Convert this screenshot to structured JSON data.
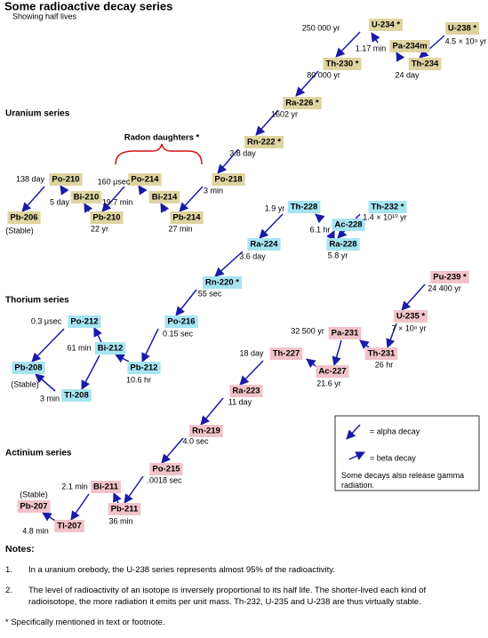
{
  "header": {
    "title": "Some radioactive decay series",
    "subtitle": "Showing half lives"
  },
  "series": [
    {
      "label": "Uranium series",
      "nodes": [
        "U-238 *",
        "Pa-234m",
        "Th-234",
        "U-234 *",
        "Th-230 *",
        "Ra-226 *",
        "Rn-222 *",
        "Po-218",
        "Pb-214",
        "Bi-214",
        "Po-214",
        "Pb-210",
        "Bi-210",
        "Po-210",
        "Pb-206"
      ],
      "labels": [
        "4.5 × 10⁹ yr",
        "24 day",
        "1.17 min",
        "250 000 yr",
        "80 000 yr",
        "1602 yr",
        "3.8 day",
        "3 min",
        "27 min",
        "19.7 min",
        "160 μsec",
        "22 yr",
        "5 day",
        "138 day",
        "(Stable)",
        "Radon daughters *"
      ]
    },
    {
      "label": "Thorium series",
      "nodes": [
        "Th-232 *",
        "Ac-228",
        "Ra-228",
        "Th-228",
        "Ra-224",
        "Rn-220 *",
        "Po-216",
        "Pb-212",
        "Bi-212",
        "Po-212",
        "Tl-208",
        "Pb-208"
      ],
      "labels": [
        "1.4 × 10¹⁰ yr",
        "6.1 hr",
        "5.8 yr",
        "1.9 yr",
        "3.6 day",
        "55 sec",
        "0.15 sec",
        "10.6 hr",
        "61 min",
        "0.3 μsec",
        "3 min",
        "(Stable)"
      ]
    },
    {
      "label": "Actinium series",
      "nodes": [
        "Pu-239 *",
        "U-235 *",
        "Pa-231",
        "Th-231",
        "Th-227",
        "Ac-227",
        "Ra-223",
        "Rn-219",
        "Po-215",
        "Bi-211",
        "Pb-211",
        "Tl-207",
        "Pb-207"
      ],
      "labels": [
        "24 400 yr",
        "7 × 10⁸ yr",
        "26 hr",
        "32 500 yr",
        "18 day",
        "21.6 yr",
        "11 day",
        "4.0 sec",
        ".0018 sec",
        "2.1 min",
        "36 min",
        "4.8 min",
        "(Stable)"
      ]
    }
  ],
  "legend": {
    "alpha": "= alpha decay",
    "beta": "= beta decay",
    "note": "Some decays also release gamma radiation."
  },
  "notes": {
    "heading": "Notes:",
    "items": [
      {
        "number": "1.",
        "text": "In a uranium orebody, the U-238 series represents almost 95% of the radioactivity."
      },
      {
        "number": "2.",
        "text": "The level of radioactivity of an isotope is inversely proportional to its half life.  The shorter-lived each kind of radioisotope, the more radiation it emits per unit mass.  Th-232, U-235 and U-238 are thus virtually stable."
      }
    ],
    "footnote": "* Specifically mentioned in text or footnote."
  }
}
